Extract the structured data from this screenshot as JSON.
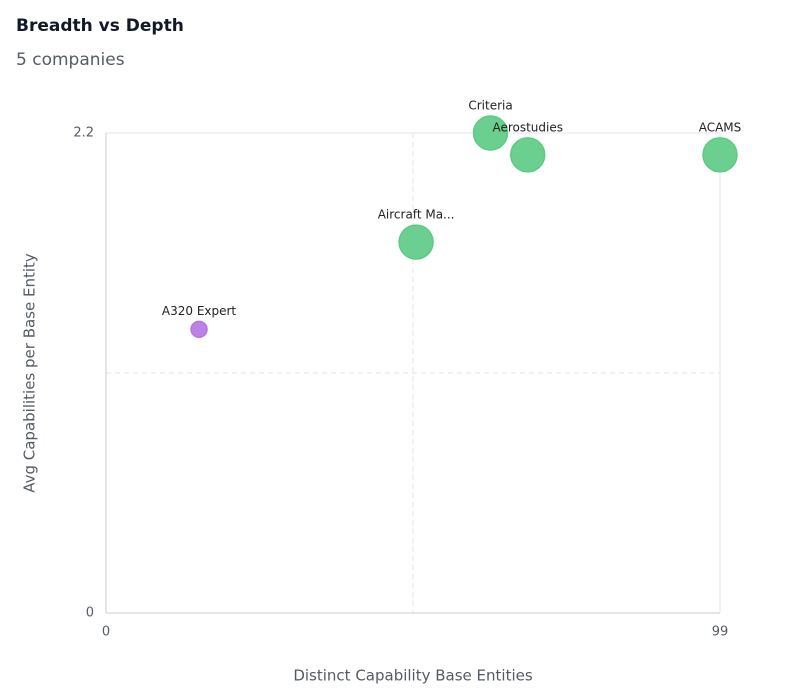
{
  "chart_data": {
    "type": "scatter",
    "title": "Breadth vs Depth",
    "subtitle": "5 companies",
    "x_label": "Distinct Capability Base Entities",
    "y_label": "Avg Capabilities per Base Entity",
    "points": {
      "labels": [
        "A320 Expert",
        "Aircraft Ma...",
        "Criteria",
        "Aerostudies",
        "ACAMS"
      ],
      "x": [
        15,
        50,
        62,
        68,
        99
      ],
      "y": [
        1.3,
        1.7,
        2.2,
        2.1,
        2.1
      ],
      "sizes": [
        1,
        4.5,
        4.5,
        4.5,
        4.5
      ],
      "colors": [
        "#c17af0",
        "#5fd68a",
        "#5fd68a",
        "#5fd68a",
        "#5fd68a"
      ]
    },
    "xlim": [
      0,
      99
    ],
    "xticks": [
      0,
      99
    ],
    "ylim": [
      0,
      2.2
    ],
    "yticks": [
      0,
      2.2
    ]
  }
}
